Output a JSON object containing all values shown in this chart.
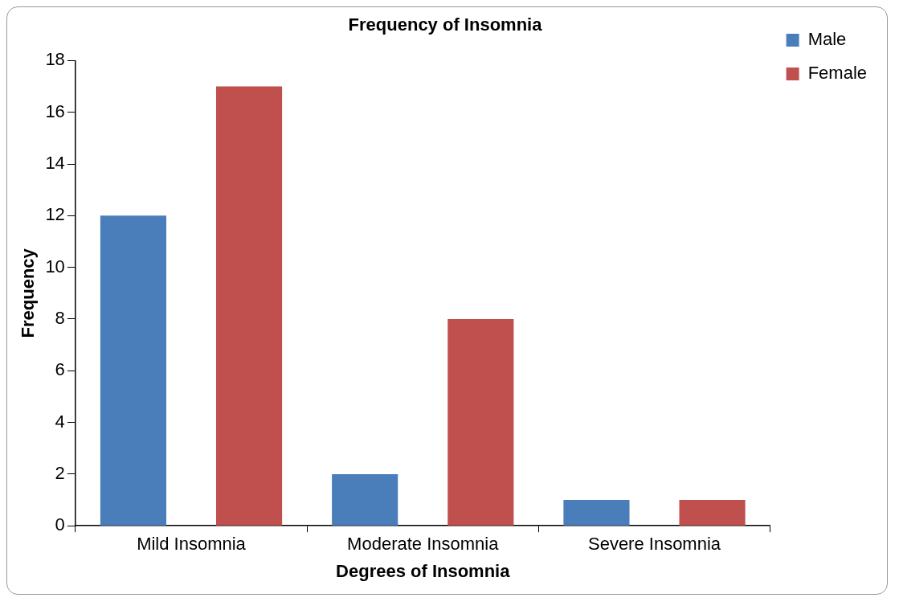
{
  "chart_data": {
    "type": "bar",
    "title": "Frequency of Insomnia",
    "xlabel": "Degrees of Insomnia",
    "ylabel": "Frequency",
    "categories": [
      "Mild Insomnia",
      "Moderate Insomnia",
      "Severe Insomnia"
    ],
    "series": [
      {
        "name": "Male",
        "color": "#4a7ebb",
        "values": [
          12,
          2,
          1
        ]
      },
      {
        "name": "Female",
        "color": "#c0504d",
        "values": [
          17,
          8,
          1
        ]
      }
    ],
    "ylim": [
      0,
      18
    ],
    "yticks": [
      0,
      2,
      4,
      6,
      8,
      10,
      12,
      14,
      16,
      18
    ],
    "grid": false,
    "legend": "top right"
  }
}
